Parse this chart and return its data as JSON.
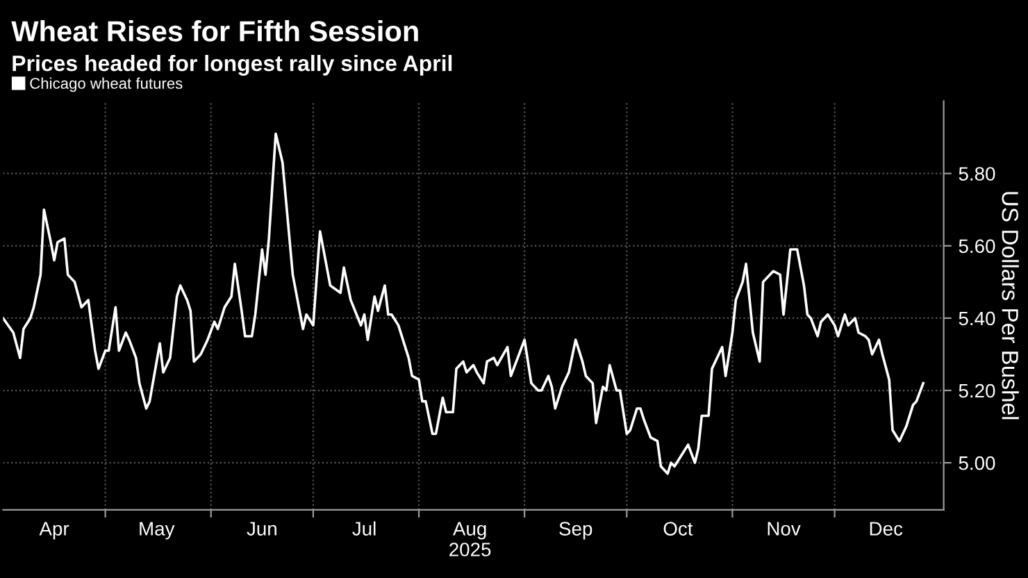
{
  "chart_data": {
    "type": "line",
    "title": "Wheat Rises for Fifth Session",
    "subtitle": "Prices headed for longest rally since April",
    "ylabel": "US Dollars Per Bushel",
    "x": [
      "2025-04-01",
      "2025-04-04",
      "2025-04-06",
      "2025-04-07",
      "2025-04-09",
      "2025-04-10",
      "2025-04-12",
      "2025-04-13",
      "2025-04-15",
      "2025-04-16",
      "2025-04-17",
      "2025-04-19",
      "2025-04-20",
      "2025-04-22",
      "2025-04-24",
      "2025-04-26",
      "2025-04-28",
      "2025-04-29",
      "2025-05-01",
      "2025-05-02",
      "2025-05-04",
      "2025-05-05",
      "2025-05-07",
      "2025-05-08",
      "2025-05-10",
      "2025-05-11",
      "2025-05-13",
      "2025-05-14",
      "2025-05-17",
      "2025-05-18",
      "2025-05-20",
      "2025-05-22",
      "2025-05-23",
      "2025-05-25",
      "2025-05-26",
      "2025-05-27",
      "2025-05-29",
      "2025-05-31",
      "2025-06-02",
      "2025-06-03",
      "2025-06-05",
      "2025-06-07",
      "2025-06-08",
      "2025-06-10",
      "2025-06-11",
      "2025-06-13",
      "2025-06-14",
      "2025-06-16",
      "2025-06-17",
      "2025-06-18",
      "2025-06-20",
      "2025-06-22",
      "2025-06-25",
      "2025-06-28",
      "2025-06-29",
      "2025-07-01",
      "2025-07-03",
      "2025-07-06",
      "2025-07-09",
      "2025-07-10",
      "2025-07-12",
      "2025-07-15",
      "2025-07-16",
      "2025-07-17",
      "2025-07-19",
      "2025-07-20",
      "2025-07-22",
      "2025-07-23",
      "2025-07-24",
      "2025-07-26",
      "2025-07-29",
      "2025-07-30",
      "2025-08-01",
      "2025-08-02",
      "2025-08-03",
      "2025-08-05",
      "2025-08-06",
      "2025-08-08",
      "2025-08-09",
      "2025-08-11",
      "2025-08-12",
      "2025-08-14",
      "2025-08-15",
      "2025-08-17",
      "2025-08-18",
      "2025-08-20",
      "2025-08-21",
      "2025-08-23",
      "2025-08-24",
      "2025-08-27",
      "2025-08-28",
      "2025-09-01",
      "2025-09-03",
      "2025-09-05",
      "2025-09-06",
      "2025-09-08",
      "2025-09-09",
      "2025-09-10",
      "2025-09-12",
      "2025-09-14",
      "2025-09-16",
      "2025-09-18",
      "2025-09-19",
      "2025-09-21",
      "2025-09-22",
      "2025-09-24",
      "2025-09-25",
      "2025-09-26",
      "2025-09-28",
      "2025-09-29",
      "2025-10-01",
      "2025-10-02",
      "2025-10-04",
      "2025-10-05",
      "2025-10-06",
      "2025-10-08",
      "2025-10-10",
      "2025-10-11",
      "2025-10-13",
      "2025-10-14",
      "2025-10-15",
      "2025-10-17",
      "2025-10-19",
      "2025-10-21",
      "2025-10-22",
      "2025-10-23",
      "2025-10-25",
      "2025-10-26",
      "2025-10-29",
      "2025-10-30",
      "2025-11-01",
      "2025-11-02",
      "2025-11-04",
      "2025-11-05",
      "2025-11-07",
      "2025-11-09",
      "2025-11-10",
      "2025-11-13",
      "2025-11-15",
      "2025-11-16",
      "2025-11-18",
      "2025-11-20",
      "2025-11-22",
      "2025-11-23",
      "2025-11-24",
      "2025-11-26",
      "2025-11-27",
      "2025-11-29",
      "2025-12-01",
      "2025-12-02",
      "2025-12-04",
      "2025-12-05",
      "2025-12-07",
      "2025-12-08",
      "2025-12-10",
      "2025-12-11",
      "2025-12-12",
      "2025-12-14",
      "2025-12-15",
      "2025-12-17",
      "2025-12-18",
      "2025-12-20",
      "2025-12-22",
      "2025-12-24",
      "2025-12-25",
      "2025-12-27"
    ],
    "series": [
      {
        "name": "Chicago wheat futures",
        "color": "#ffffff",
        "values": [
          5.4,
          5.36,
          5.29,
          5.37,
          5.4,
          5.43,
          5.52,
          5.7,
          5.61,
          5.56,
          5.61,
          5.62,
          5.52,
          5.5,
          5.43,
          5.45,
          5.31,
          5.26,
          5.31,
          5.31,
          5.43,
          5.31,
          5.36,
          5.34,
          5.29,
          5.22,
          5.15,
          5.17,
          5.33,
          5.25,
          5.29,
          5.46,
          5.49,
          5.45,
          5.42,
          5.28,
          5.3,
          5.34,
          5.39,
          5.37,
          5.43,
          5.46,
          5.55,
          5.42,
          5.35,
          5.35,
          5.41,
          5.59,
          5.52,
          5.62,
          5.91,
          5.83,
          5.52,
          5.37,
          5.41,
          5.38,
          5.64,
          5.49,
          5.47,
          5.54,
          5.45,
          5.38,
          5.41,
          5.34,
          5.46,
          5.42,
          5.49,
          5.41,
          5.41,
          5.38,
          5.29,
          5.24,
          5.23,
          5.17,
          5.17,
          5.08,
          5.08,
          5.18,
          5.14,
          5.14,
          5.26,
          5.28,
          5.25,
          5.27,
          5.25,
          5.22,
          5.28,
          5.29,
          5.27,
          5.32,
          5.24,
          5.34,
          5.22,
          5.2,
          5.2,
          5.24,
          5.21,
          5.15,
          5.21,
          5.25,
          5.34,
          5.28,
          5.24,
          5.22,
          5.11,
          5.21,
          5.2,
          5.27,
          5.2,
          5.2,
          5.08,
          5.09,
          5.15,
          5.15,
          5.12,
          5.07,
          5.06,
          4.99,
          4.97,
          5.0,
          4.99,
          5.02,
          5.05,
          5.0,
          5.04,
          5.13,
          5.13,
          5.26,
          5.32,
          5.24,
          5.36,
          5.45,
          5.5,
          5.55,
          5.36,
          5.28,
          5.5,
          5.53,
          5.52,
          5.41,
          5.59,
          5.59,
          5.49,
          5.41,
          5.4,
          5.35,
          5.39,
          5.41,
          5.38,
          5.35,
          5.41,
          5.38,
          5.4,
          5.36,
          5.35,
          5.34,
          5.3,
          5.34,
          5.3,
          5.23,
          5.09,
          5.06,
          5.1,
          5.16,
          5.17,
          5.22
        ]
      }
    ],
    "xlim": [
      "2025-04-01",
      "2026-01-02"
    ],
    "xticks": [
      {
        "value": "2025-04-16",
        "label": "Apr"
      },
      {
        "value": "2025-05-01",
        "label": null
      },
      {
        "value": "2025-05-16",
        "label": "May"
      },
      {
        "value": "2025-06-01",
        "label": null
      },
      {
        "value": "2025-06-16",
        "label": "Jun"
      },
      {
        "value": "2025-07-01",
        "label": null
      },
      {
        "value": "2025-07-16",
        "label": "Jul"
      },
      {
        "value": "2025-08-01",
        "label": null
      },
      {
        "value": "2025-08-16",
        "label": "Aug\n2025"
      },
      {
        "value": "2025-09-01",
        "label": null
      },
      {
        "value": "2025-09-16",
        "label": "Sep"
      },
      {
        "value": "2025-10-01",
        "label": null
      },
      {
        "value": "2025-10-16",
        "label": "Oct"
      },
      {
        "value": "2025-11-01",
        "label": null
      },
      {
        "value": "2025-11-16",
        "label": "Nov"
      },
      {
        "value": "2025-12-01",
        "label": null
      },
      {
        "value": "2025-12-16",
        "label": "Dec"
      }
    ],
    "ylim": [
      4.87,
      6.0
    ],
    "yticks": [
      {
        "value": 5.0,
        "label": "5.00"
      },
      {
        "value": 5.2,
        "label": "5.20"
      },
      {
        "value": 5.4,
        "label": "5.40"
      },
      {
        "value": 5.6,
        "label": "5.60"
      },
      {
        "value": 5.8,
        "label": "5.80"
      }
    ],
    "grid": true,
    "legend": "top left",
    "marker": "none",
    "line_style": "solid"
  }
}
